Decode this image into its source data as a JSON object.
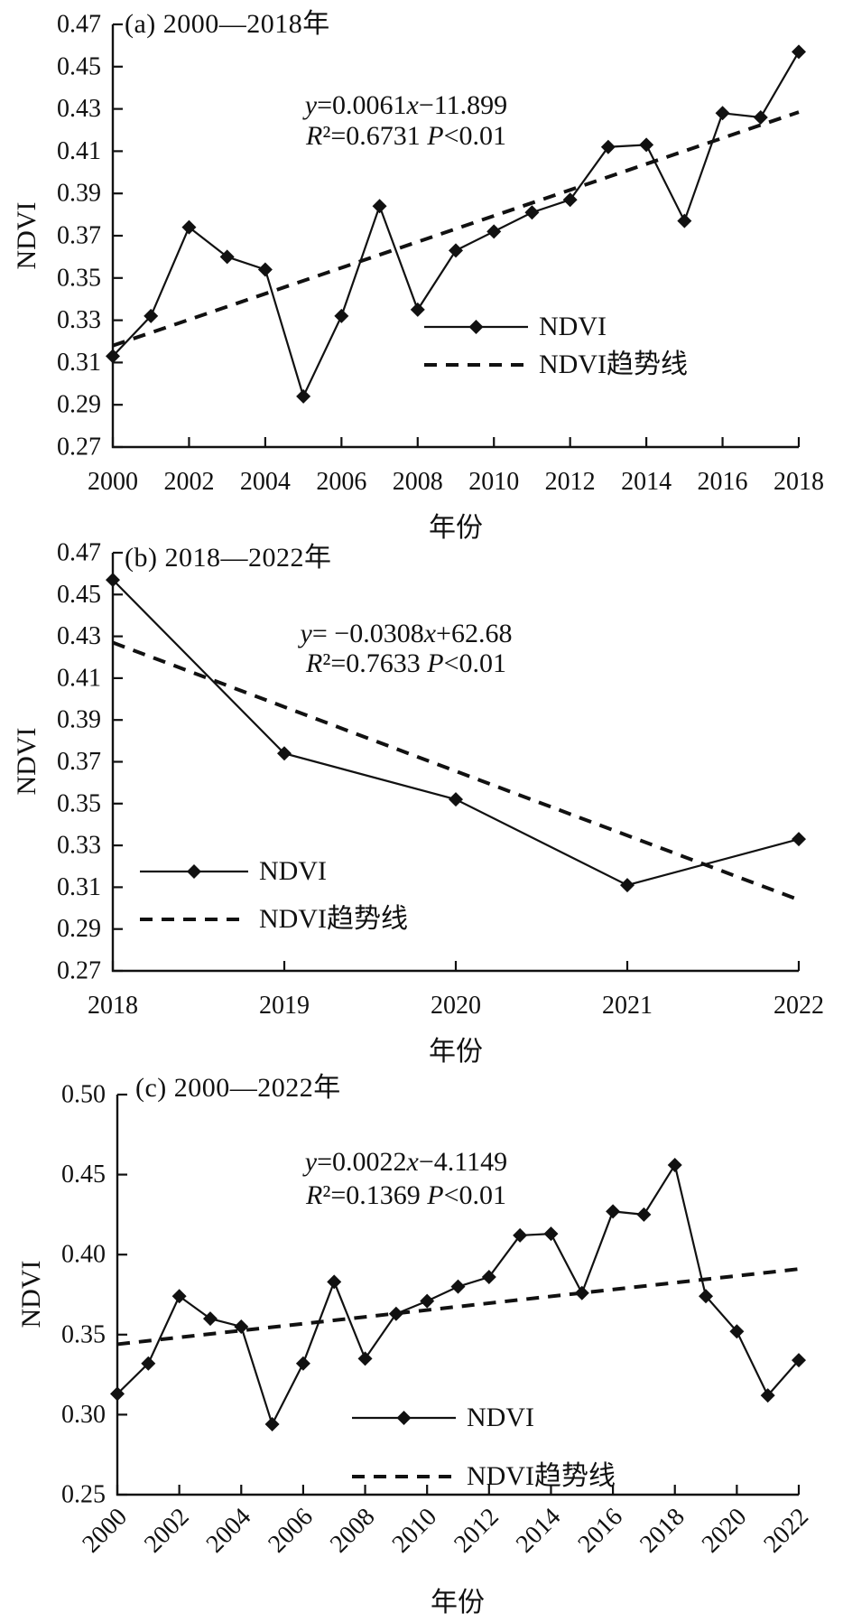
{
  "chart_data": [
    {
      "type": "line",
      "panel_label": "(a) 2000—2018年",
      "equation": "y=0.0061x−11.899",
      "stats": "R²=0.6731 P<0.01",
      "xlabel": "年份",
      "ylabel": "NDVI",
      "legend": [
        "NDVI",
        "NDVI趋势线"
      ],
      "legend_position": "inside-right-lower",
      "grid": false,
      "x": [
        2000,
        2001,
        2002,
        2003,
        2004,
        2005,
        2006,
        2007,
        2008,
        2009,
        2010,
        2011,
        2012,
        2013,
        2014,
        2015,
        2016,
        2017,
        2018
      ],
      "series": [
        {
          "name": "NDVI",
          "values": [
            0.313,
            0.332,
            0.374,
            0.36,
            0.354,
            0.294,
            0.332,
            0.384,
            0.335,
            0.363,
            0.372,
            0.381,
            0.387,
            0.412,
            0.413,
            0.377,
            0.428,
            0.426,
            0.457
          ]
        }
      ],
      "trendline": {
        "name": "NDVI趋势线",
        "equation": "y=0.0061x−11.899",
        "x_ends": [
          2000,
          2018
        ],
        "y_ends": [
          0.318,
          0.4285
        ]
      },
      "xlim": [
        2000,
        2018
      ],
      "ylim": [
        0.27,
        0.47
      ],
      "xtick_step": 2,
      "ytick_step": 0.02,
      "xtick_rotation": 0
    },
    {
      "type": "line",
      "panel_label": "(b) 2018—2022年",
      "equation": "y= −0.0308x+62.68",
      "stats": "R²=0.7633 P<0.01",
      "xlabel": "年份",
      "ylabel": "NDVI",
      "legend": [
        "NDVI",
        "NDVI趋势线"
      ],
      "legend_position": "inside-left-lower",
      "grid": false,
      "x": [
        2018,
        2019,
        2020,
        2021,
        2022
      ],
      "series": [
        {
          "name": "NDVI",
          "values": [
            0.457,
            0.374,
            0.352,
            0.311,
            0.333
          ]
        }
      ],
      "trendline": {
        "name": "NDVI趋势线",
        "equation": "y= −0.0308x+62.68",
        "x_ends": [
          2018,
          2022
        ],
        "y_ends": [
          0.427,
          0.304
        ]
      },
      "xlim": [
        2018,
        2022
      ],
      "ylim": [
        0.27,
        0.47
      ],
      "xtick_step": 1,
      "ytick_step": 0.02,
      "xtick_rotation": 0
    },
    {
      "type": "line",
      "panel_label": "(c) 2000—2022年",
      "equation": "y=0.0022x−4.1149",
      "stats": "R²=0.1369 P<0.01",
      "xlabel": "年份",
      "ylabel": "NDVI",
      "legend": [
        "NDVI",
        "NDVI趋势线"
      ],
      "legend_position": "inside-center-lower",
      "grid": false,
      "x": [
        2000,
        2001,
        2002,
        2003,
        2004,
        2005,
        2006,
        2007,
        2008,
        2009,
        2010,
        2011,
        2012,
        2013,
        2014,
        2015,
        2016,
        2017,
        2018,
        2019,
        2020,
        2021,
        2022
      ],
      "series": [
        {
          "name": "NDVI",
          "values": [
            0.313,
            0.332,
            0.374,
            0.36,
            0.355,
            0.294,
            0.332,
            0.383,
            0.335,
            0.363,
            0.371,
            0.38,
            0.386,
            0.412,
            0.413,
            0.376,
            0.427,
            0.425,
            0.456,
            0.374,
            0.352,
            0.312,
            0.334
          ]
        }
      ],
      "trendline": {
        "name": "NDVI趋势线",
        "equation": "y=0.0022x−4.1149",
        "x_ends": [
          2000,
          2022
        ],
        "y_ends": [
          0.344,
          0.391
        ]
      },
      "xlim": [
        2000,
        2022
      ],
      "ylim": [
        0.25,
        0.5
      ],
      "xtick_step": 2,
      "ytick_step": 0.05,
      "xtick_rotation": -45
    }
  ],
  "style": {
    "line_color": "#111111",
    "marker": "diamond",
    "trend_style": "dashed"
  }
}
